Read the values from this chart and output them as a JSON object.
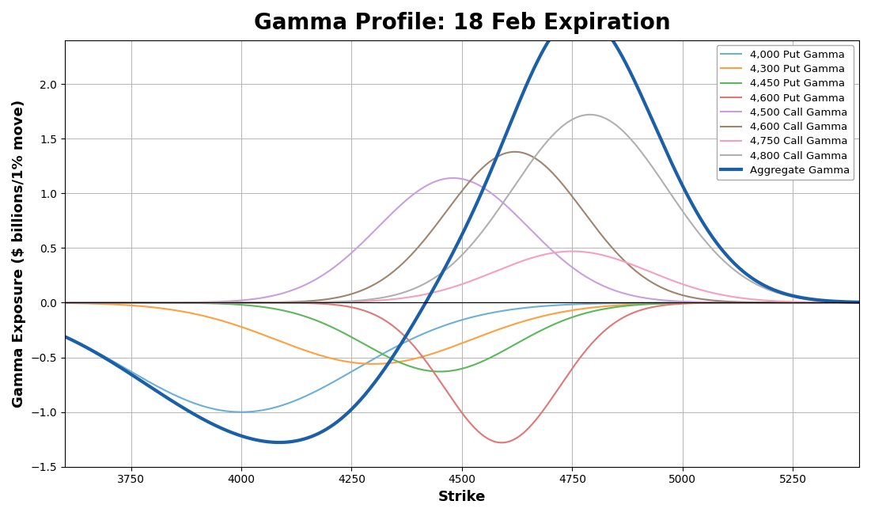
{
  "title": "Gamma Profile: 18 Feb Expiration",
  "xlabel": "Strike",
  "ylabel": "Gamma Exposure ($ billions/1% move)",
  "xlim": [
    3600,
    5400
  ],
  "ylim": [
    -1.5,
    2.4
  ],
  "xticks": [
    3750,
    4000,
    4250,
    4500,
    4750,
    5000,
    5250
  ],
  "yticks": [
    -1.5,
    -1.0,
    -0.5,
    0.0,
    0.5,
    1.0,
    1.5,
    2.0
  ],
  "series": [
    {
      "label": "4,000 Put Gamma",
      "strike": 4000,
      "amplitude": -1.0,
      "sigma": 260,
      "color": "#6ab0d8",
      "lw": 1.5
    },
    {
      "label": "4,300 Put Gamma",
      "strike": 4300,
      "amplitude": -0.56,
      "sigma": 220,
      "color": "#ffa040",
      "lw": 1.5
    },
    {
      "label": "4,450 Put Gamma",
      "strike": 4450,
      "amplitude": -0.63,
      "sigma": 170,
      "color": "#5cb85c",
      "lw": 1.5
    },
    {
      "label": "4,600 Put Gamma",
      "strike": 4590,
      "amplitude": -1.28,
      "sigma": 130,
      "color": "#e07878",
      "lw": 1.5
    },
    {
      "label": "4,500 Call Gamma",
      "strike": 4480,
      "amplitude": 1.14,
      "sigma": 170,
      "color": "#c9a0dc",
      "lw": 1.5
    },
    {
      "label": "4,600 Call Gamma",
      "strike": 4620,
      "amplitude": 1.38,
      "sigma": 155,
      "color": "#a0856e",
      "lw": 1.5
    },
    {
      "label": "4,750 Call Gamma",
      "strike": 4750,
      "amplitude": 0.47,
      "sigma": 175,
      "color": "#f4a0c0",
      "lw": 1.5
    },
    {
      "label": "4,800 Call Gamma",
      "strike": 4790,
      "amplitude": 1.72,
      "sigma": 175,
      "color": "#b0b0b0",
      "lw": 1.5
    },
    {
      "label": "Aggregate Gamma",
      "color": "#1a5fa8",
      "lw": 3.0
    }
  ],
  "background_color": "#ffffff",
  "grid_color": "#aaaaaa",
  "title_fontsize": 20,
  "label_fontsize": 13
}
